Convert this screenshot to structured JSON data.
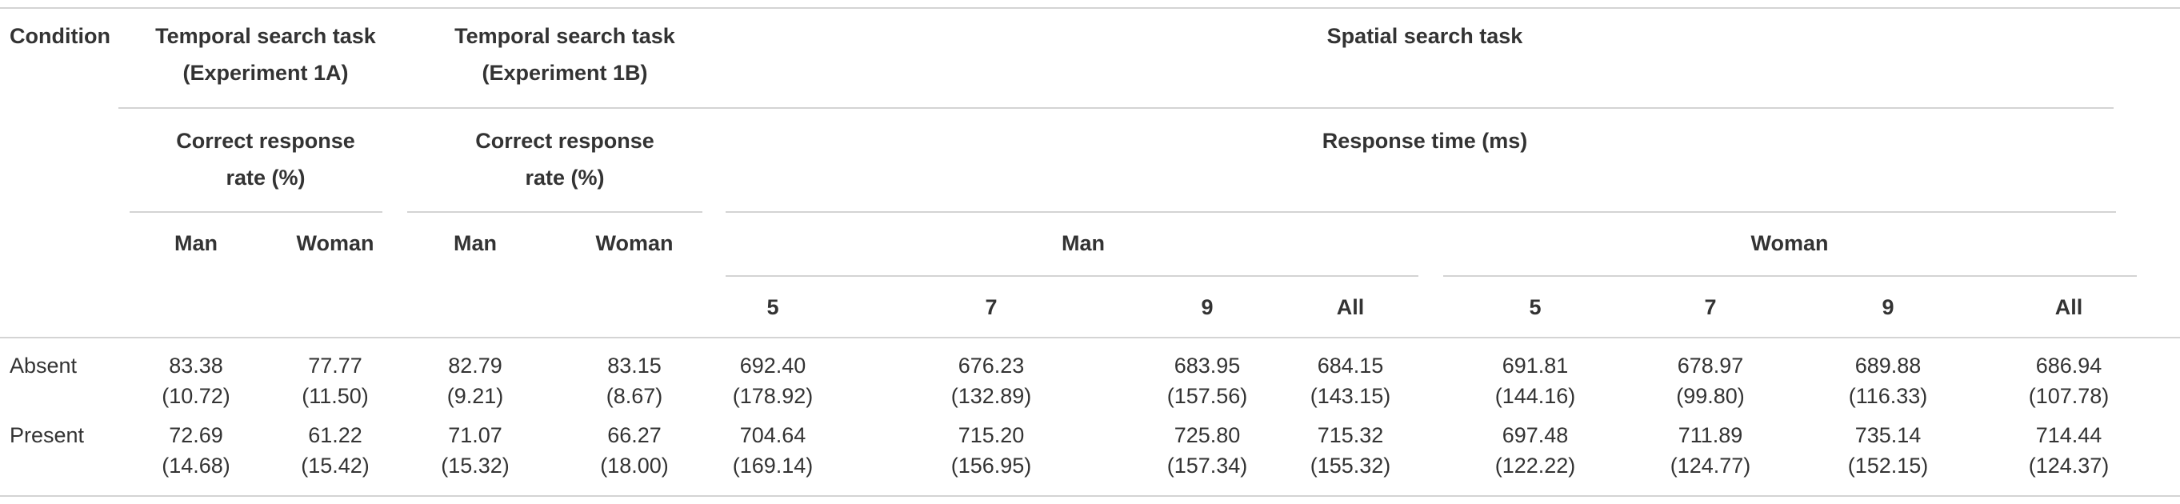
{
  "header": {
    "condition": "Condition",
    "groups": [
      "Temporal search task (Experiment 1A)",
      "Temporal search task (Experiment 1B)",
      "Spatial search task"
    ],
    "measures": [
      "Correct response rate (%)",
      "Correct response rate (%)",
      "Response time (ms)"
    ],
    "sexes": [
      "Man",
      "Woman",
      "Man",
      "Woman",
      "Man",
      "Woman"
    ],
    "set_sizes": [
      "5",
      "7",
      "9",
      "All",
      "5",
      "7",
      "9",
      "All"
    ]
  },
  "rows": [
    {
      "label": "Absent",
      "cells": [
        {
          "mean": "83.38",
          "sd": "(10.72)"
        },
        {
          "mean": "77.77",
          "sd": "(11.50)"
        },
        {
          "mean": "82.79",
          "sd": "(9.21)"
        },
        {
          "mean": "83.15",
          "sd": "(8.67)"
        },
        {
          "mean": "692.40",
          "sd": "(178.92)"
        },
        {
          "mean": "676.23",
          "sd": "(132.89)"
        },
        {
          "mean": "683.95",
          "sd": "(157.56)"
        },
        {
          "mean": "684.15",
          "sd": "(143.15)"
        },
        {
          "mean": "691.81",
          "sd": "(144.16)"
        },
        {
          "mean": "678.97",
          "sd": "(99.80)"
        },
        {
          "mean": "689.88",
          "sd": "(116.33)"
        },
        {
          "mean": "686.94",
          "sd": "(107.78)"
        }
      ]
    },
    {
      "label": "Present",
      "cells": [
        {
          "mean": "72.69",
          "sd": "(14.68)"
        },
        {
          "mean": "61.22",
          "sd": "(15.42)"
        },
        {
          "mean": "71.07",
          "sd": "(15.32)"
        },
        {
          "mean": "66.27",
          "sd": "(18.00)"
        },
        {
          "mean": "704.64",
          "sd": "(169.14)"
        },
        {
          "mean": "715.20",
          "sd": "(156.95)"
        },
        {
          "mean": "725.80",
          "sd": "(157.34)"
        },
        {
          "mean": "715.32",
          "sd": "(155.32)"
        },
        {
          "mean": "697.48",
          "sd": "(122.22)"
        },
        {
          "mean": "711.89",
          "sd": "(124.77)"
        },
        {
          "mean": "735.14",
          "sd": "(152.15)"
        },
        {
          "mean": "714.44",
          "sd": "(124.37)"
        }
      ]
    }
  ]
}
